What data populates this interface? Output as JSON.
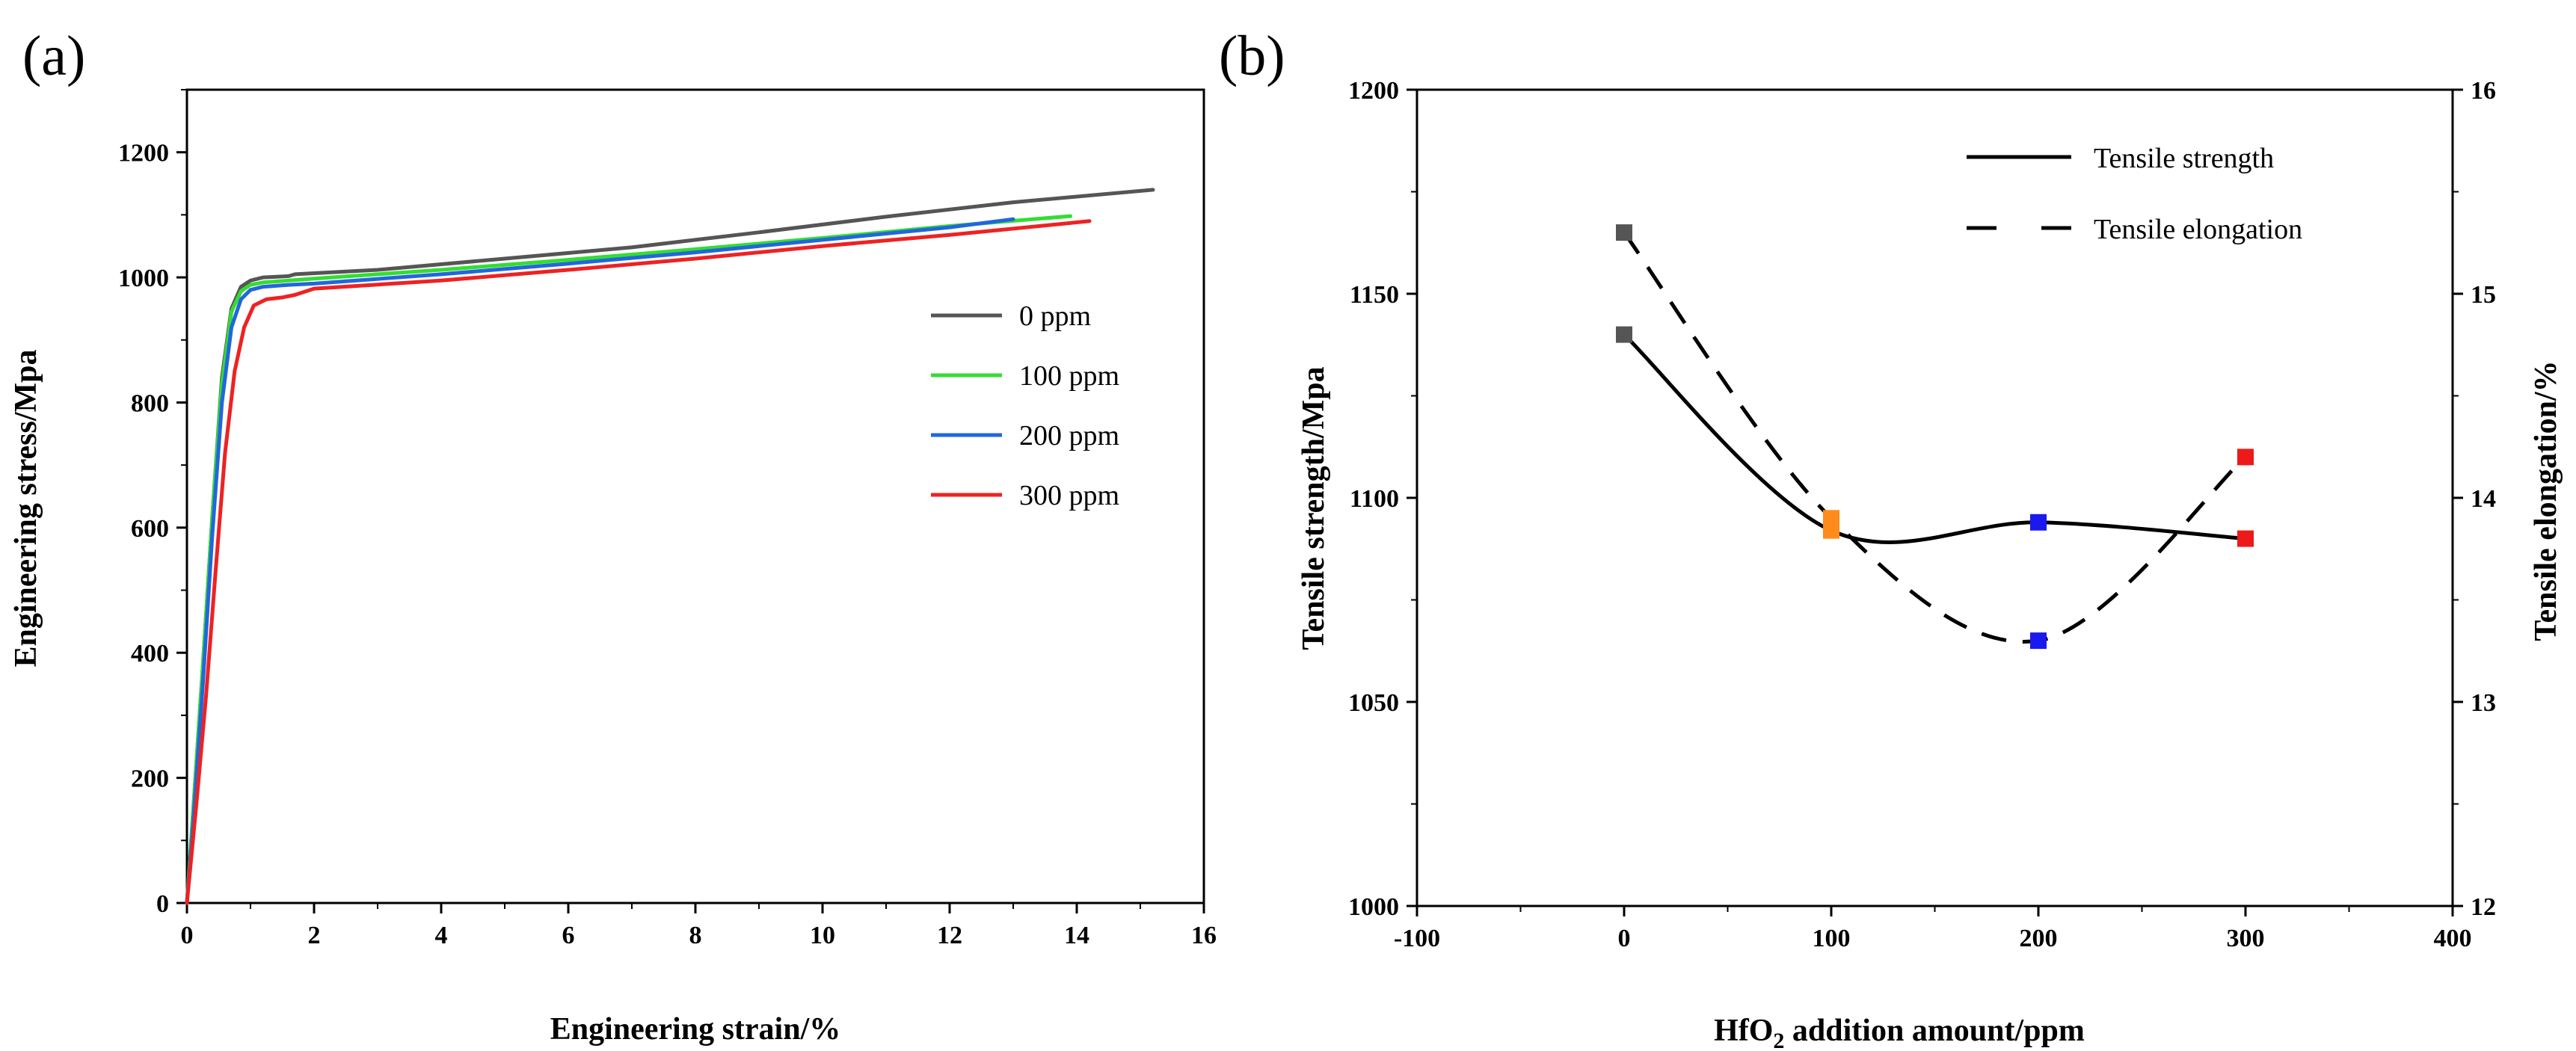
{
  "chart_data": [
    {
      "type": "line",
      "panel_label": "(a)",
      "title": "",
      "xlabel": "Engineering strain/%",
      "ylabel": "Engineering stress/Mpa",
      "xlim": [
        0,
        16
      ],
      "ylim": [
        0,
        1300
      ],
      "xticks": [
        0,
        2,
        4,
        6,
        8,
        10,
        12,
        14,
        16
      ],
      "yticks": [
        0,
        200,
        400,
        600,
        800,
        1000,
        1200
      ],
      "xtick_labels": [
        "0",
        "2",
        "4",
        "6",
        "8",
        "10",
        "12",
        "14",
        "16"
      ],
      "ytick_labels": [
        "0",
        "200",
        "400",
        "600",
        "800",
        "1000",
        "1200"
      ],
      "legend_position": "center-right",
      "series": [
        {
          "name": "0 ppm",
          "color": "#555555",
          "x": [
            0,
            0.1,
            0.25,
            0.4,
            0.55,
            0.7,
            0.85,
            1.0,
            1.2,
            1.6,
            1.7,
            3,
            5,
            7,
            9,
            11,
            13,
            15.2
          ],
          "y": [
            0,
            150,
            380,
            620,
            840,
            950,
            985,
            995,
            1000,
            1002,
            1005,
            1012,
            1030,
            1048,
            1072,
            1097,
            1120,
            1140
          ]
        },
        {
          "name": "100 ppm",
          "color": "#33dd33",
          "x": [
            0,
            0.1,
            0.25,
            0.4,
            0.55,
            0.7,
            0.85,
            1.0,
            1.2,
            1.6,
            2,
            4,
            6,
            8,
            10,
            12,
            13.9
          ],
          "y": [
            0,
            150,
            380,
            620,
            830,
            945,
            978,
            988,
            992,
            995,
            998,
            1012,
            1028,
            1045,
            1063,
            1082,
            1098
          ]
        },
        {
          "name": "200 ppm",
          "color": "#2266dd",
          "x": [
            0,
            0.1,
            0.25,
            0.4,
            0.55,
            0.7,
            0.85,
            1.0,
            1.2,
            1.6,
            2,
            4,
            6,
            8,
            10,
            12,
            13.0
          ],
          "y": [
            0,
            130,
            350,
            590,
            800,
            920,
            965,
            980,
            985,
            988,
            990,
            1005,
            1022,
            1040,
            1060,
            1080,
            1093
          ]
        },
        {
          "name": "300 ppm",
          "color": "#ee2222",
          "x": [
            0,
            0.15,
            0.3,
            0.45,
            0.6,
            0.75,
            0.9,
            1.05,
            1.25,
            1.5,
            1.7,
            2,
            4,
            6,
            8,
            10,
            12,
            14.2
          ],
          "y": [
            0,
            160,
            330,
            530,
            720,
            850,
            920,
            955,
            965,
            968,
            972,
            982,
            995,
            1012,
            1030,
            1050,
            1068,
            1090
          ]
        }
      ]
    },
    {
      "type": "line",
      "panel_label": "(b)",
      "title": "",
      "xlabel_main": "HfO",
      "xlabel_sub": "2",
      "xlabel_rest": " addition amount/ppm",
      "ylabel": "Tensile strength/Mpa",
      "y2label": "Tensile elongation/%",
      "xlim": [
        -100,
        400
      ],
      "ylim": [
        1000,
        1200
      ],
      "y2lim": [
        12,
        16
      ],
      "xticks": [
        -100,
        0,
        100,
        200,
        300,
        400
      ],
      "yticks": [
        1000,
        1050,
        1100,
        1150,
        1200
      ],
      "y2ticks": [
        12,
        13,
        14,
        15,
        16
      ],
      "xtick_labels": [
        "-100",
        "0",
        "100",
        "200",
        "300",
        "400"
      ],
      "ytick_labels": [
        "1000",
        "1050",
        "1100",
        "1150",
        "1200"
      ],
      "y2tick_labels": [
        "12",
        "13",
        "14",
        "15",
        "16"
      ],
      "legend_position": "top-right",
      "marker_colors": [
        "#555555",
        "#ff8c1a",
        "#1a1aee",
        "#ee1a1a"
      ],
      "series": [
        {
          "name": "Tensile strength",
          "axis": "left",
          "style": "solid",
          "color": "#000000",
          "x": [
            0,
            100,
            200,
            300
          ],
          "y": [
            1140,
            1092,
            1094,
            1090
          ]
        },
        {
          "name": "Tensile elongation",
          "axis": "right",
          "style": "dashed",
          "color": "#000000",
          "x": [
            0,
            100,
            200,
            300
          ],
          "y": [
            15.3,
            13.9,
            13.3,
            14.2
          ]
        }
      ]
    }
  ]
}
